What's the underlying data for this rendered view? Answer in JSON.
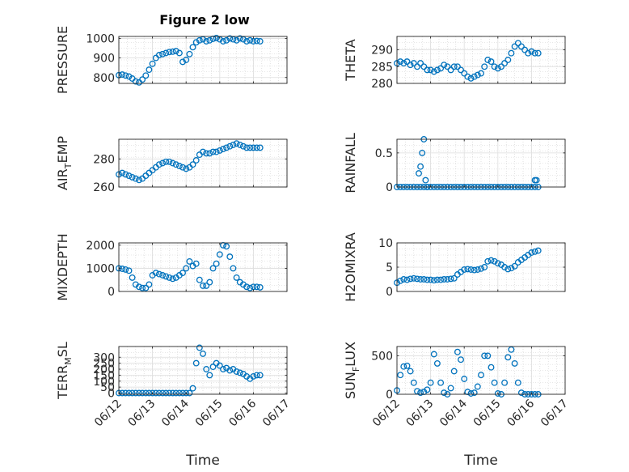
{
  "figure": {
    "title": "Figure 2 low",
    "xlabel": "Time",
    "xtick_labels": [
      "06/12",
      "06/13",
      "06/14",
      "06/15",
      "06/16",
      "06/17"
    ],
    "marker_color": "#0072BD",
    "grid": "major+minor",
    "marker": "circle"
  },
  "chart_data": [
    {
      "type": "scatter",
      "ylabel": "PRESSURE",
      "xlim": [
        0,
        5
      ],
      "ylim": [
        770,
        1010
      ],
      "yticks": [
        800,
        900,
        1000
      ],
      "x": [
        0,
        0.1,
        0.2,
        0.3,
        0.4,
        0.5,
        0.6,
        0.7,
        0.8,
        0.9,
        1.0,
        1.1,
        1.2,
        1.3,
        1.4,
        1.5,
        1.6,
        1.7,
        1.8,
        1.9,
        2.0,
        2.1,
        2.2,
        2.3,
        2.4,
        2.5,
        2.6,
        2.7,
        2.8,
        2.9,
        3.0,
        3.1,
        3.2,
        3.3,
        3.4,
        3.5,
        3.6,
        3.7,
        3.8,
        3.9,
        4.0,
        4.1,
        4.2
      ],
      "y": [
        812,
        815,
        810,
        805,
        795,
        780,
        775,
        790,
        810,
        840,
        870,
        900,
        915,
        920,
        925,
        930,
        932,
        935,
        925,
        880,
        890,
        920,
        955,
        980,
        990,
        995,
        985,
        990,
        998,
        1002,
        995,
        985,
        990,
        1000,
        995,
        990,
        1000,
        995,
        985,
        990,
        985,
        987,
        985
      ]
    },
    {
      "type": "scatter",
      "ylabel": "THETA",
      "xlim": [
        0,
        5
      ],
      "ylim": [
        280,
        294
      ],
      "yticks": [
        280,
        285,
        290
      ],
      "x": [
        0,
        0.1,
        0.2,
        0.3,
        0.4,
        0.5,
        0.6,
        0.7,
        0.8,
        0.9,
        1.0,
        1.1,
        1.2,
        1.3,
        1.4,
        1.5,
        1.6,
        1.7,
        1.8,
        1.9,
        2.0,
        2.1,
        2.2,
        2.3,
        2.4,
        2.5,
        2.6,
        2.7,
        2.8,
        2.9,
        3.0,
        3.1,
        3.2,
        3.3,
        3.4,
        3.5,
        3.6,
        3.7,
        3.8,
        3.9,
        4.0,
        4.1,
        4.2
      ],
      "y": [
        286,
        286.5,
        286,
        286.5,
        285.5,
        286,
        285,
        286,
        285,
        284,
        284,
        283.5,
        284,
        284.5,
        285.5,
        285,
        284,
        285,
        285,
        284,
        283,
        282,
        281.5,
        282,
        282.5,
        283,
        285,
        287,
        286.5,
        285,
        284.5,
        285,
        286,
        287,
        289,
        291,
        292,
        291,
        290,
        289,
        289.5,
        289,
        289
      ]
    },
    {
      "type": "scatter",
      "ylabel": "AIR_TEMP",
      "xlim": [
        0,
        5
      ],
      "ylim": [
        260,
        294
      ],
      "yticks": [
        260,
        280
      ],
      "x": [
        0,
        0.1,
        0.2,
        0.3,
        0.4,
        0.5,
        0.6,
        0.7,
        0.8,
        0.9,
        1.0,
        1.1,
        1.2,
        1.3,
        1.4,
        1.5,
        1.6,
        1.7,
        1.8,
        1.9,
        2.0,
        2.1,
        2.2,
        2.3,
        2.4,
        2.5,
        2.6,
        2.7,
        2.8,
        2.9,
        3.0,
        3.1,
        3.2,
        3.3,
        3.4,
        3.5,
        3.6,
        3.7,
        3.8,
        3.9,
        4.0,
        4.1,
        4.2
      ],
      "y": [
        269,
        270,
        269,
        268,
        267,
        266,
        265,
        266,
        268,
        270,
        272,
        274,
        276,
        277,
        278,
        278,
        277,
        276,
        275,
        274,
        273,
        274,
        276,
        279,
        283,
        285,
        284,
        284,
        285,
        285,
        286,
        287,
        288,
        289,
        290,
        291,
        290,
        289,
        288,
        288,
        288,
        288,
        288
      ]
    },
    {
      "type": "scatter",
      "ylabel": "RAINFALL",
      "xlim": [
        0,
        5
      ],
      "ylim": [
        0,
        0.7
      ],
      "yticks": [
        0,
        0.5
      ],
      "x": [
        0,
        0.1,
        0.2,
        0.3,
        0.4,
        0.5,
        0.6,
        0.7,
        0.8,
        0.9,
        1.0,
        1.1,
        1.2,
        1.3,
        1.4,
        1.5,
        1.6,
        1.7,
        1.8,
        1.9,
        2.0,
        2.1,
        2.2,
        2.3,
        2.4,
        2.5,
        2.6,
        2.7,
        2.8,
        2.9,
        3.0,
        3.1,
        3.2,
        3.3,
        3.4,
        3.5,
        3.6,
        3.7,
        3.8,
        3.9,
        4.0,
        4.1,
        4.2,
        0.65,
        0.7,
        0.75,
        0.8,
        0.85,
        0.9,
        4.1,
        4.15
      ],
      "y": [
        0,
        0,
        0,
        0,
        0,
        0,
        0,
        0,
        0,
        0,
        0,
        0,
        0,
        0,
        0,
        0,
        0,
        0,
        0,
        0,
        0,
        0,
        0,
        0,
        0,
        0,
        0,
        0,
        0,
        0,
        0,
        0,
        0,
        0,
        0,
        0,
        0,
        0,
        0,
        0,
        0,
        0,
        0,
        0.2,
        0.3,
        0.5,
        0.7,
        0.1,
        0.0,
        0.1,
        0.1
      ]
    },
    {
      "type": "scatter",
      "ylabel": "MIXDEPTH",
      "xlim": [
        0,
        5
      ],
      "ylim": [
        0,
        2100
      ],
      "yticks": [
        0,
        1000,
        2000
      ],
      "x": [
        0,
        0.1,
        0.2,
        0.3,
        0.4,
        0.5,
        0.6,
        0.7,
        0.8,
        0.9,
        1.0,
        1.1,
        1.2,
        1.3,
        1.4,
        1.5,
        1.6,
        1.7,
        1.8,
        1.9,
        2.0,
        2.1,
        2.2,
        2.3,
        2.4,
        2.5,
        2.6,
        2.7,
        2.8,
        2.9,
        3.0,
        3.1,
        3.2,
        3.3,
        3.4,
        3.5,
        3.6,
        3.7,
        3.8,
        3.9,
        4.0,
        4.1,
        4.2
      ],
      "y": [
        1000,
        980,
        950,
        900,
        600,
        300,
        200,
        150,
        150,
        300,
        700,
        800,
        750,
        700,
        650,
        600,
        550,
        600,
        700,
        800,
        1000,
        1300,
        1100,
        1200,
        500,
        250,
        250,
        400,
        1000,
        1200,
        1600,
        2000,
        1950,
        1500,
        1000,
        600,
        400,
        300,
        200,
        150,
        200,
        200,
        180
      ]
    },
    {
      "type": "scatter",
      "ylabel": "H2OMIXRA",
      "xlim": [
        0,
        5
      ],
      "ylim": [
        0,
        10
      ],
      "yticks": [
        0,
        5,
        10
      ],
      "x": [
        0,
        0.1,
        0.2,
        0.3,
        0.4,
        0.5,
        0.6,
        0.7,
        0.8,
        0.9,
        1.0,
        1.1,
        1.2,
        1.3,
        1.4,
        1.5,
        1.6,
        1.7,
        1.8,
        1.9,
        2.0,
        2.1,
        2.2,
        2.3,
        2.4,
        2.5,
        2.6,
        2.7,
        2.8,
        2.9,
        3.0,
        3.1,
        3.2,
        3.3,
        3.4,
        3.5,
        3.6,
        3.7,
        3.8,
        3.9,
        4.0,
        4.1,
        4.2
      ],
      "y": [
        1.8,
        2.2,
        2.5,
        2.4,
        2.6,
        2.7,
        2.6,
        2.5,
        2.5,
        2.4,
        2.4,
        2.3,
        2.4,
        2.4,
        2.5,
        2.5,
        2.6,
        2.7,
        3.5,
        4.0,
        4.5,
        4.6,
        4.5,
        4.4,
        4.5,
        4.7,
        5.0,
        6.2,
        6.4,
        6.2,
        5.8,
        5.5,
        5.0,
        4.6,
        4.8,
        5.2,
        6.0,
        6.5,
        7.0,
        7.5,
        8.0,
        8.2,
        8.4
      ]
    },
    {
      "type": "scatter",
      "ylabel": "TERR_MSL",
      "xlim": [
        0,
        5
      ],
      "ylim": [
        -10,
        390
      ],
      "yticks": [
        0,
        50,
        100,
        150,
        200,
        250,
        300
      ],
      "x": [
        0,
        0.1,
        0.2,
        0.3,
        0.4,
        0.5,
        0.6,
        0.7,
        0.8,
        0.9,
        1.0,
        1.1,
        1.2,
        1.3,
        1.4,
        1.5,
        1.6,
        1.7,
        1.8,
        1.9,
        2.0,
        2.1,
        2.2,
        2.3,
        2.4,
        2.5,
        2.6,
        2.7,
        2.8,
        2.9,
        3.0,
        3.1,
        3.2,
        3.3,
        3.4,
        3.5,
        3.6,
        3.7,
        3.8,
        3.9,
        4.0,
        4.1,
        4.2
      ],
      "y": [
        0,
        0,
        0,
        0,
        0,
        0,
        0,
        0,
        0,
        0,
        0,
        0,
        0,
        0,
        0,
        0,
        0,
        0,
        0,
        0,
        0,
        0,
        40,
        250,
        380,
        330,
        200,
        150,
        220,
        250,
        230,
        200,
        210,
        190,
        200,
        180,
        170,
        160,
        140,
        120,
        140,
        150,
        150
      ]
    },
    {
      "type": "scatter",
      "ylabel": "SUN_FLUX",
      "xlim": [
        0,
        5
      ],
      "ylim": [
        0,
        620
      ],
      "yticks": [
        0,
        500
      ],
      "x": [
        0,
        0.1,
        0.2,
        0.3,
        0.4,
        0.5,
        0.6,
        0.7,
        0.8,
        0.9,
        1.0,
        1.1,
        1.2,
        1.3,
        1.4,
        1.5,
        1.6,
        1.7,
        1.8,
        1.9,
        2.0,
        2.1,
        2.2,
        2.3,
        2.4,
        2.5,
        2.6,
        2.7,
        2.8,
        2.9,
        3.0,
        3.1,
        3.2,
        3.3,
        3.4,
        3.5,
        3.6,
        3.7,
        3.8,
        3.9,
        4.0,
        4.1,
        4.2
      ],
      "y": [
        50,
        250,
        360,
        370,
        300,
        150,
        40,
        20,
        30,
        60,
        150,
        520,
        400,
        150,
        20,
        0,
        80,
        300,
        550,
        450,
        200,
        30,
        10,
        20,
        100,
        250,
        500,
        500,
        350,
        150,
        10,
        0,
        150,
        480,
        580,
        400,
        150,
        20,
        0,
        0,
        0,
        0,
        0
      ]
    }
  ]
}
